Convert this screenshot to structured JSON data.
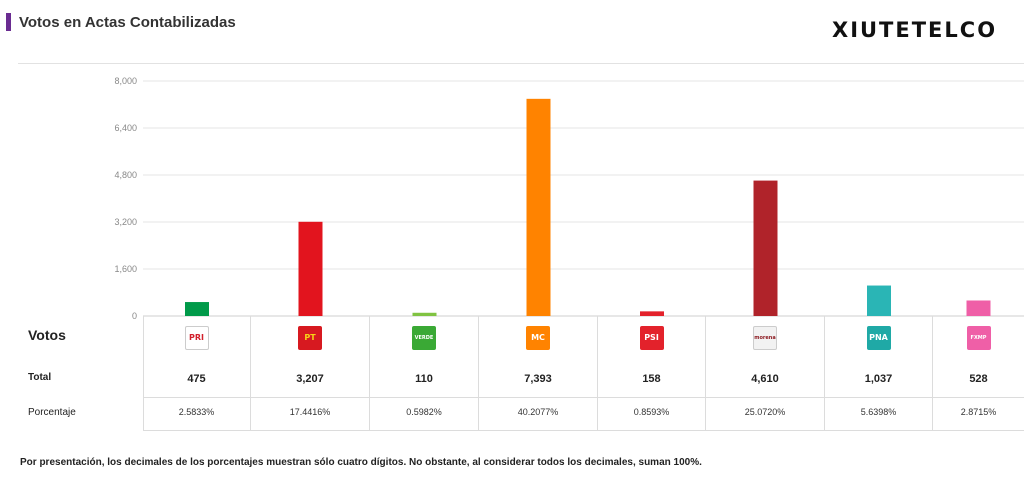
{
  "header": {
    "title": "Votos en Actas Contabilizadas",
    "brand": "XIUTETELCO"
  },
  "table": {
    "votos_label": "Votos",
    "total_label": "Total",
    "pct_label": "Porcentaje"
  },
  "parties": [
    {
      "logo": "PRI",
      "logo_name": "pri-logo-icon",
      "total": "475",
      "pct": "2.5833%",
      "color": "#009a49",
      "logo_bg": "#ffffff",
      "logo_fg": "#d21f2b"
    },
    {
      "logo": "PT",
      "logo_name": "pt-logo-icon",
      "total": "3,207",
      "pct": "17.4416%",
      "color": "#e2141e",
      "logo_bg": "#d71920",
      "logo_fg": "#f7d417"
    },
    {
      "logo": "VERDE",
      "logo_name": "verde-logo-icon",
      "total": "110",
      "pct": "0.5982%",
      "color": "#80c342",
      "logo_bg": "#3aa935",
      "logo_fg": "#ffffff"
    },
    {
      "logo": "MC",
      "logo_name": "movimiento-ciudadano-logo-icon",
      "total": "7,393",
      "pct": "40.2077%",
      "color": "#ff8300",
      "logo_bg": "#ff8300",
      "logo_fg": "#ffffff"
    },
    {
      "logo": "PSI",
      "logo_name": "psi-logo-icon",
      "total": "158",
      "pct": "0.8593%",
      "color": "#e3222b",
      "logo_bg": "#e3222b",
      "logo_fg": "#ffffff"
    },
    {
      "logo": "morena",
      "logo_name": "morena-logo-icon",
      "total": "4,610",
      "pct": "25.0720%",
      "color": "#b0232a",
      "logo_bg": "#f2f2f2",
      "logo_fg": "#8d1b22"
    },
    {
      "logo": "PNA",
      "logo_name": "nueva-alianza-logo-icon",
      "total": "1,037",
      "pct": "5.6398%",
      "color": "#2ab5b5",
      "logo_bg": "#1fa9a6",
      "logo_fg": "#ffffff"
    },
    {
      "logo": "FXMP",
      "logo_name": "fuerza-por-mexico-logo-icon",
      "total": "528",
      "pct": "2.8715%",
      "color": "#ef5fa7",
      "logo_bg": "#ef5fa7",
      "logo_fg": "#ffffff"
    }
  ],
  "chart_data": {
    "type": "bar",
    "categories": [
      "PRI",
      "PT",
      "VERDE",
      "MC",
      "PSI",
      "MORENA",
      "PNA",
      "FXMP"
    ],
    "values": [
      475,
      3207,
      110,
      7393,
      158,
      4610,
      1037,
      528
    ],
    "ylim": [
      0,
      8000
    ],
    "yticks": [
      "0",
      "1,600",
      "3,200",
      "4,800",
      "6,400",
      "8,000"
    ],
    "ytick_values": [
      0,
      1600,
      3200,
      4800,
      6400,
      8000
    ],
    "grid": true
  },
  "footnote": "Por presentación, los decimales de los porcentajes muestran sólo cuatro dígitos. No obstante, al considerar todos los decimales, suman 100%."
}
